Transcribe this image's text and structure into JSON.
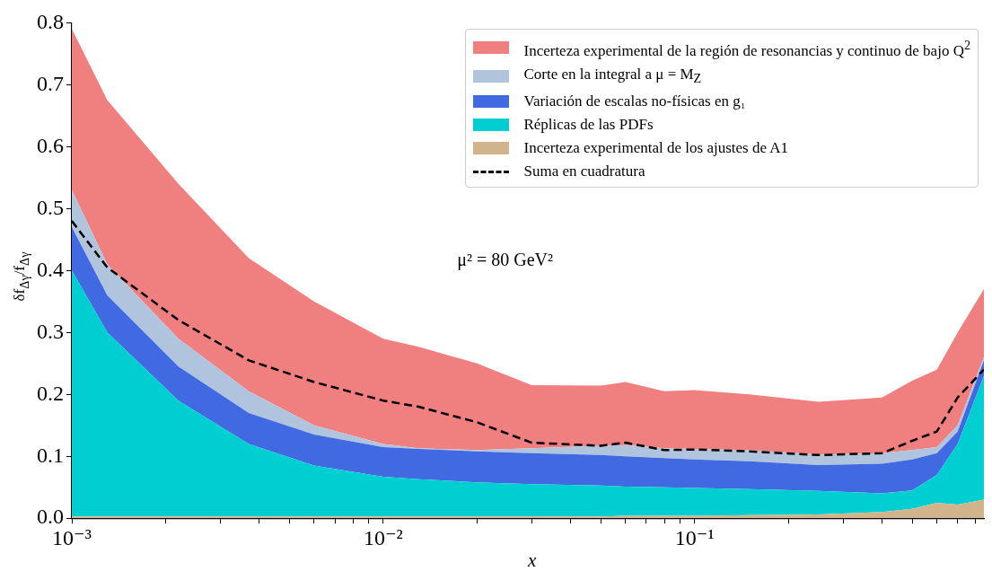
{
  "chart_data": {
    "type": "area",
    "stacked": true,
    "xlabel": "x",
    "ylabel": "δf$_{Δγ}$/f$_{Δγ}$",
    "annotations": [
      "μ² = 80 GeV²"
    ],
    "x": [
      0.001,
      0.0013,
      0.0022,
      0.0037,
      0.006,
      0.01,
      0.013,
      0.02,
      0.03,
      0.05,
      0.06,
      0.08,
      0.1,
      0.15,
      0.25,
      0.4,
      0.5,
      0.6,
      0.7,
      0.85
    ],
    "series": [
      {
        "name": "Incerteza experimental de los ajustes de A1",
        "color": "#d2b48c",
        "values": [
          0.003,
          0.003,
          0.003,
          0.003,
          0.003,
          0.003,
          0.003,
          0.003,
          0.003,
          0.003,
          0.004,
          0.004,
          0.004,
          0.005,
          0.006,
          0.01,
          0.015,
          0.025,
          0.022,
          0.03
        ]
      },
      {
        "name": "Réplicas de las PDFs",
        "color": "#00ced1",
        "values": [
          0.397,
          0.297,
          0.187,
          0.117,
          0.082,
          0.064,
          0.06,
          0.055,
          0.052,
          0.05,
          0.047,
          0.046,
          0.045,
          0.042,
          0.038,
          0.03,
          0.03,
          0.045,
          0.098,
          0.2
        ]
      },
      {
        "name": "Variación de escalas no-físicas en g₁",
        "color": "#4169e1",
        "values": [
          0.07,
          0.06,
          0.055,
          0.05,
          0.05,
          0.048,
          0.049,
          0.05,
          0.05,
          0.049,
          0.049,
          0.047,
          0.046,
          0.045,
          0.042,
          0.048,
          0.05,
          0.035,
          0.02,
          0.025
        ]
      },
      {
        "name": "Corte en la integral a μ = M$_{Z}$",
        "color": "#b0c4de",
        "values": [
          0.06,
          0.05,
          0.045,
          0.035,
          0.015,
          0.005,
          0.001,
          0.002,
          0.008,
          0.015,
          0.018,
          0.016,
          0.017,
          0.018,
          0.017,
          0.017,
          0.015,
          0.01,
          0.01,
          0.005
        ]
      },
      {
        "name": "Incerteza experimental de la región de resonancias y continuo de bajo Q$^{2}$",
        "color": "#f08080",
        "values": [
          0.26,
          0.265,
          0.25,
          0.215,
          0.2,
          0.17,
          0.164,
          0.14,
          0.102,
          0.097,
          0.102,
          0.092,
          0.095,
          0.09,
          0.085,
          0.09,
          0.112,
          0.125,
          0.15,
          0.11
        ]
      },
      {
        "name": "Suma en cuadratura",
        "type": "line",
        "color": "#000000",
        "line_style": "dashed",
        "values": [
          0.48,
          0.405,
          0.32,
          0.255,
          0.22,
          0.19,
          0.18,
          0.155,
          0.122,
          0.117,
          0.122,
          0.11,
          0.111,
          0.108,
          0.102,
          0.105,
          0.125,
          0.14,
          0.195,
          0.24
        ]
      }
    ],
    "log": "x",
    "xlim": [
      0.001,
      0.85
    ],
    "xticks": [
      {
        "value": 0.001,
        "label": "10⁻³"
      },
      {
        "value": 0.002,
        "label": null
      },
      {
        "value": 0.003,
        "label": null
      },
      {
        "value": 0.004,
        "label": null
      },
      {
        "value": 0.005,
        "label": null
      },
      {
        "value": 0.006,
        "label": null
      },
      {
        "value": 0.007,
        "label": null
      },
      {
        "value": 0.008,
        "label": null
      },
      {
        "value": 0.009,
        "label": null
      },
      {
        "value": 0.01,
        "label": "10⁻²"
      },
      {
        "value": 0.02,
        "label": null
      },
      {
        "value": 0.03,
        "label": null
      },
      {
        "value": 0.04,
        "label": null
      },
      {
        "value": 0.05,
        "label": null
      },
      {
        "value": 0.06,
        "label": null
      },
      {
        "value": 0.07,
        "label": null
      },
      {
        "value": 0.08,
        "label": null
      },
      {
        "value": 0.09,
        "label": null
      },
      {
        "value": 0.1,
        "label": "10⁻¹"
      },
      {
        "value": 0.2,
        "label": null
      },
      {
        "value": 0.3,
        "label": null
      },
      {
        "value": 0.4,
        "label": null
      },
      {
        "value": 0.5,
        "label": null
      },
      {
        "value": 0.6,
        "label": null
      },
      {
        "value": 0.7,
        "label": null
      },
      {
        "value": 0.8,
        "label": null
      }
    ],
    "ylim": [
      0,
      0.8
    ],
    "yticks": [
      {
        "value": 0,
        "label": "0.0"
      },
      {
        "value": 0.1,
        "label": "0.1"
      },
      {
        "value": 0.2,
        "label": "0.2"
      },
      {
        "value": 0.3,
        "label": "0.3"
      },
      {
        "value": 0.4,
        "label": "0.4"
      },
      {
        "value": 0.5,
        "label": "0.5"
      },
      {
        "value": 0.6,
        "label": "0.6"
      },
      {
        "value": 0.7,
        "label": "0.7"
      },
      {
        "value": 0.8,
        "label": "0.8"
      }
    ],
    "grid": false,
    "legend": "top right"
  }
}
